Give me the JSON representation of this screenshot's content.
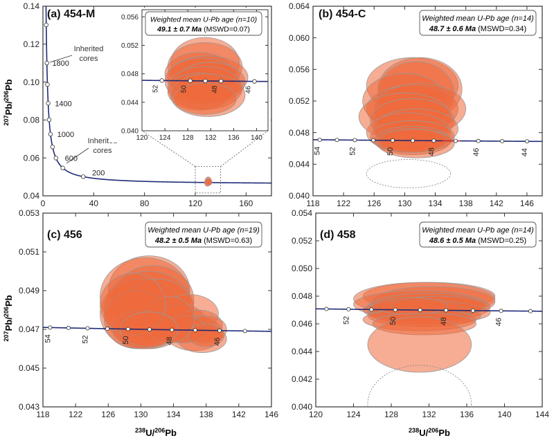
{
  "figure": {
    "ylabel_left": "207Pb/206Pb",
    "xlabel": "238U/206Pb"
  },
  "chart_data": [
    {
      "id": "a",
      "type": "scatter",
      "panel_label": "(a) 454-M",
      "xlim": [
        0,
        180
      ],
      "ylim": [
        0.04,
        0.14
      ],
      "xticks": [
        0,
        40,
        80,
        120,
        160
      ],
      "yticks": [
        0.04,
        0.06,
        0.08,
        0.1,
        0.12,
        0.14
      ],
      "ytick_labels": [
        "0.04",
        "0.06",
        "0.08",
        "0.10",
        "0.12",
        "0.14"
      ],
      "concordia_age_labels": [
        "1800",
        "1400",
        "1000",
        "600",
        "200"
      ],
      "annotations": [
        "Inherited cores",
        "Inherited cores"
      ],
      "inset": {
        "title": "Weighted mean U-Pb age",
        "n": "(n=10)",
        "age": "49.1 ± 0.7 Ma",
        "mswd": "(MSWD=0.07)",
        "xlim": [
          120,
          142
        ],
        "ylim": [
          0.04,
          0.057
        ],
        "xticks": [
          120,
          124,
          128,
          132,
          136,
          140
        ],
        "yticks": [
          0.04,
          0.044,
          0.048,
          0.052,
          0.056
        ],
        "ytick_labels": [
          "0.040",
          "0.044",
          "0.048",
          "0.052",
          "0.056"
        ],
        "age_labels": [
          "52",
          "50",
          "48",
          "46"
        ]
      }
    },
    {
      "id": "b",
      "type": "scatter",
      "panel_label": "(b) 454-C",
      "title": "Weighted mean U-Pb age",
      "n": "(n=14)",
      "age": "48.7 ± 0.6 Ma",
      "mswd": "(MSWD=0.34)",
      "xlim": [
        118,
        148
      ],
      "ylim": [
        0.04,
        0.064
      ],
      "xticks": [
        118,
        122,
        126,
        130,
        134,
        138,
        142,
        146
      ],
      "yticks": [
        0.04,
        0.044,
        0.048,
        0.052,
        0.056,
        0.06,
        0.064
      ],
      "ytick_labels": [
        "0.040",
        "0.044",
        "0.048",
        "0.052",
        "0.056",
        "0.060",
        "0.064"
      ],
      "age_labels": [
        "54",
        "52",
        "50",
        "48",
        "46",
        "44"
      ]
    },
    {
      "id": "c",
      "type": "scatter",
      "panel_label": "(c) 456",
      "title": "Weighted mean U-Pb age",
      "n": "(n=19)",
      "age": "48.2 ± 0.5 Ma",
      "mswd": "(MSWD=0.63)",
      "xlim": [
        118,
        146
      ],
      "ylim": [
        0.043,
        0.053
      ],
      "xticks": [
        118,
        122,
        126,
        130,
        134,
        138,
        142,
        146
      ],
      "yticks": [
        0.043,
        0.045,
        0.047,
        0.049,
        0.051,
        0.053
      ],
      "ytick_labels": [
        "0.043",
        "0.045",
        "0.047",
        "0.049",
        "0.051",
        "0.053"
      ],
      "age_labels": [
        "54",
        "52",
        "50",
        "48",
        "46"
      ]
    },
    {
      "id": "d",
      "type": "scatter",
      "panel_label": "(d) 458",
      "title": "Weighted mean U-Pb age",
      "n": "(n=14)",
      "age": "48.6 ± 0.5 Ma",
      "mswd": "(MSWD=0.25)",
      "xlim": [
        120,
        144
      ],
      "ylim": [
        0.04,
        0.054
      ],
      "xticks": [
        120,
        124,
        128,
        132,
        136,
        140,
        144
      ],
      "yticks": [
        0.04,
        0.042,
        0.044,
        0.046,
        0.048,
        0.05,
        0.052,
        0.054
      ],
      "ytick_labels": [
        "0.040",
        "0.042",
        "0.044",
        "0.046",
        "0.048",
        "0.050",
        "0.052",
        "0.054"
      ],
      "age_labels": [
        "52",
        "50",
        "48",
        "46"
      ]
    }
  ],
  "colors": {
    "concordia": "#1f2a78",
    "ellipse_fill": "#ef6a3c",
    "ellipse_stroke": "#9a9a9a",
    "point_fill": "#ffffff"
  }
}
